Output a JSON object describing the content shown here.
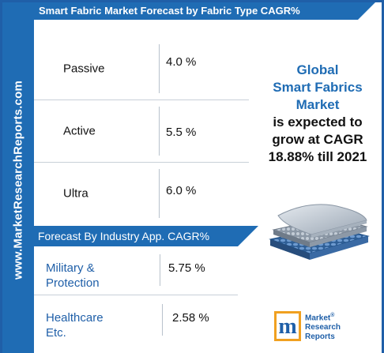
{
  "sidebar": {
    "site": "www.MarketResearchReports.com"
  },
  "chart_data": [
    {
      "type": "table",
      "title": "Smart Fabric Market Forecast by Fabric Type CAGR%",
      "categories": [
        "Passive",
        "Active",
        "Ultra"
      ],
      "value_labels": [
        "4.0 %",
        "5.5 %",
        "6.0 %"
      ],
      "values": [
        4.0,
        5.5,
        6.0
      ]
    },
    {
      "type": "table",
      "title": "Forecast By Industry App. CAGR%",
      "categories": [
        "Military & Protection",
        "Healthcare Etc."
      ],
      "category_lines": [
        [
          "Military &",
          "Protection"
        ],
        [
          "Healthcare",
          "Etc."
        ]
      ],
      "value_labels": [
        "5.75 %",
        "2.58 %"
      ],
      "values": [
        5.75,
        2.58
      ]
    }
  ],
  "callout": {
    "line1": "Global",
    "line2": "Smart Fabrics",
    "line3": "Market",
    "line4": "is expected to",
    "line5": "grow at CAGR",
    "line6": "18.88% till 2021"
  },
  "logo": {
    "letter": "m",
    "line1": "Market",
    "registered": "®",
    "line2": "Research",
    "line3": "Reports"
  },
  "colors": {
    "brand_blue": "#1f6cb4",
    "highlight_text": "#1f6cb4",
    "logo_orange": "#f0a020"
  },
  "icons": {
    "illustration": "fabric-layers-illustration",
    "logo": "market-research-reports-logo"
  }
}
